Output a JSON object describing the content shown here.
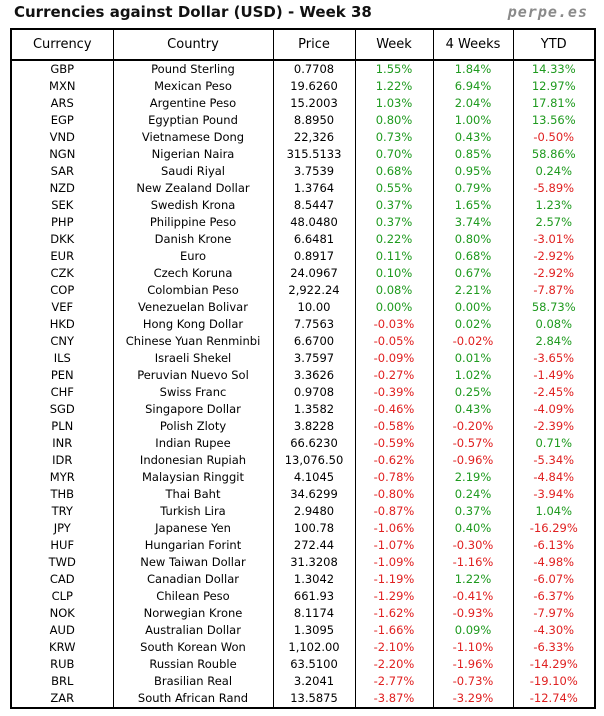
{
  "header": {
    "title": "Currencies against Dollar (USD) - Week 38",
    "site": "perpe.es"
  },
  "table": {
    "columns": [
      "Currency",
      "Country",
      "Price",
      "Week",
      "4 Weeks",
      "YTD"
    ],
    "rows": [
      [
        "GBP",
        "Pound Sterling",
        "0.7708",
        "1.55%",
        "1.84%",
        "14.33%"
      ],
      [
        "MXN",
        "Mexican Peso",
        "19.6260",
        "1.22%",
        "6.94%",
        "12.97%"
      ],
      [
        "ARS",
        "Argentine Peso",
        "15.2003",
        "1.03%",
        "2.04%",
        "17.81%"
      ],
      [
        "EGP",
        "Egyptian Pound",
        "8.8950",
        "0.80%",
        "1.00%",
        "13.56%"
      ],
      [
        "VND",
        "Vietnamese Dong",
        "22,326",
        "0.73%",
        "0.43%",
        "-0.50%"
      ],
      [
        "NGN",
        "Nigerian Naira",
        "315.5133",
        "0.70%",
        "0.85%",
        "58.86%"
      ],
      [
        "SAR",
        "Saudi Riyal",
        "3.7539",
        "0.68%",
        "0.95%",
        "0.24%"
      ],
      [
        "NZD",
        "New Zealand Dollar",
        "1.3764",
        "0.55%",
        "0.79%",
        "-5.89%"
      ],
      [
        "SEK",
        "Swedish Krona",
        "8.5447",
        "0.37%",
        "1.65%",
        "1.23%"
      ],
      [
        "PHP",
        "Philippine Peso",
        "48.0480",
        "0.37%",
        "3.74%",
        "2.57%"
      ],
      [
        "DKK",
        "Danish Krone",
        "6.6481",
        "0.22%",
        "0.80%",
        "-3.01%"
      ],
      [
        "EUR",
        "Euro",
        "0.8917",
        "0.11%",
        "0.68%",
        "-2.92%"
      ],
      [
        "CZK",
        "Czech Koruna",
        "24.0967",
        "0.10%",
        "0.67%",
        "-2.92%"
      ],
      [
        "COP",
        "Colombian Peso",
        "2,922.24",
        "0.08%",
        "2.21%",
        "-7.87%"
      ],
      [
        "VEF",
        "Venezuelan Bolivar",
        "10.00",
        "0.00%",
        "0.00%",
        "58.73%"
      ],
      [
        "HKD",
        "Hong Kong Dollar",
        "7.7563",
        "-0.03%",
        "0.02%",
        "0.08%"
      ],
      [
        "CNY",
        "Chinese Yuan Renminbi",
        "6.6700",
        "-0.05%",
        "-0.02%",
        "2.84%"
      ],
      [
        "ILS",
        "Israeli Shekel",
        "3.7597",
        "-0.09%",
        "0.01%",
        "-3.65%"
      ],
      [
        "PEN",
        "Peruvian Nuevo Sol",
        "3.3626",
        "-0.27%",
        "1.02%",
        "-1.49%"
      ],
      [
        "CHF",
        "Swiss Franc",
        "0.9708",
        "-0.39%",
        "0.25%",
        "-2.45%"
      ],
      [
        "SGD",
        "Singapore Dollar",
        "1.3582",
        "-0.46%",
        "0.43%",
        "-4.09%"
      ],
      [
        "PLN",
        "Polish Zloty",
        "3.8228",
        "-0.58%",
        "-0.20%",
        "-2.39%"
      ],
      [
        "INR",
        "Indian Rupee",
        "66.6230",
        "-0.59%",
        "-0.57%",
        "0.71%"
      ],
      [
        "IDR",
        "Indonesian Rupiah",
        "13,076.50",
        "-0.62%",
        "-0.96%",
        "-5.34%"
      ],
      [
        "MYR",
        "Malaysian Ringgit",
        "4.1045",
        "-0.78%",
        "2.19%",
        "-4.84%"
      ],
      [
        "THB",
        "Thai Baht",
        "34.6299",
        "-0.80%",
        "0.24%",
        "-3.94%"
      ],
      [
        "TRY",
        "Turkish Lira",
        "2.9480",
        "-0.87%",
        "0.37%",
        "1.04%"
      ],
      [
        "JPY",
        "Japanese Yen",
        "100.78",
        "-1.06%",
        "0.40%",
        "-16.29%"
      ],
      [
        "HUF",
        "Hungarian Forint",
        "272.44",
        "-1.07%",
        "-0.30%",
        "-6.13%"
      ],
      [
        "TWD",
        "New Taiwan Dollar",
        "31.3208",
        "-1.09%",
        "-1.16%",
        "-4.98%"
      ],
      [
        "CAD",
        "Canadian Dollar",
        "1.3042",
        "-1.19%",
        "1.22%",
        "-6.07%"
      ],
      [
        "CLP",
        "Chilean Peso",
        "661.93",
        "-1.29%",
        "-0.41%",
        "-6.37%"
      ],
      [
        "NOK",
        "Norwegian Krone",
        "8.1174",
        "-1.62%",
        "-0.93%",
        "-7.97%"
      ],
      [
        "AUD",
        "Australian Dollar",
        "1.3095",
        "-1.66%",
        "0.09%",
        "-4.30%"
      ],
      [
        "KRW",
        "South Korean Won",
        "1,102.00",
        "-2.10%",
        "-1.10%",
        "-6.33%"
      ],
      [
        "RUB",
        "Russian Rouble",
        "63.5100",
        "-2.20%",
        "-1.96%",
        "-14.29%"
      ],
      [
        "BRL",
        "Brasilian Real",
        "3.2041",
        "-2.77%",
        "-0.73%",
        "-19.10%"
      ],
      [
        "ZAR",
        "South African Rand",
        "13.5875",
        "-3.87%",
        "-3.29%",
        "-12.74%"
      ]
    ]
  }
}
